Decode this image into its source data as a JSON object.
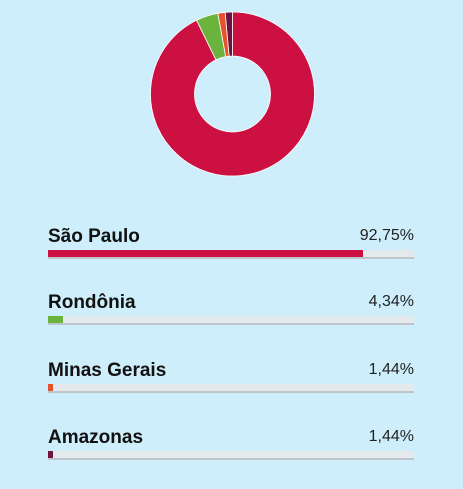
{
  "chart_data": {
    "type": "pie",
    "categories": [
      "São Paulo",
      "Rondônia",
      "Minas Gerais",
      "Amazonas"
    ],
    "values": [
      92.75,
      4.34,
      1.44,
      1.44
    ],
    "labels": [
      "92,75%",
      "4,34%",
      "1,44%",
      "1,44%"
    ],
    "colors": [
      "#cc1042",
      "#6ab43e",
      "#e5532d",
      "#6e1240"
    ],
    "title": "",
    "legend": "below"
  }
}
